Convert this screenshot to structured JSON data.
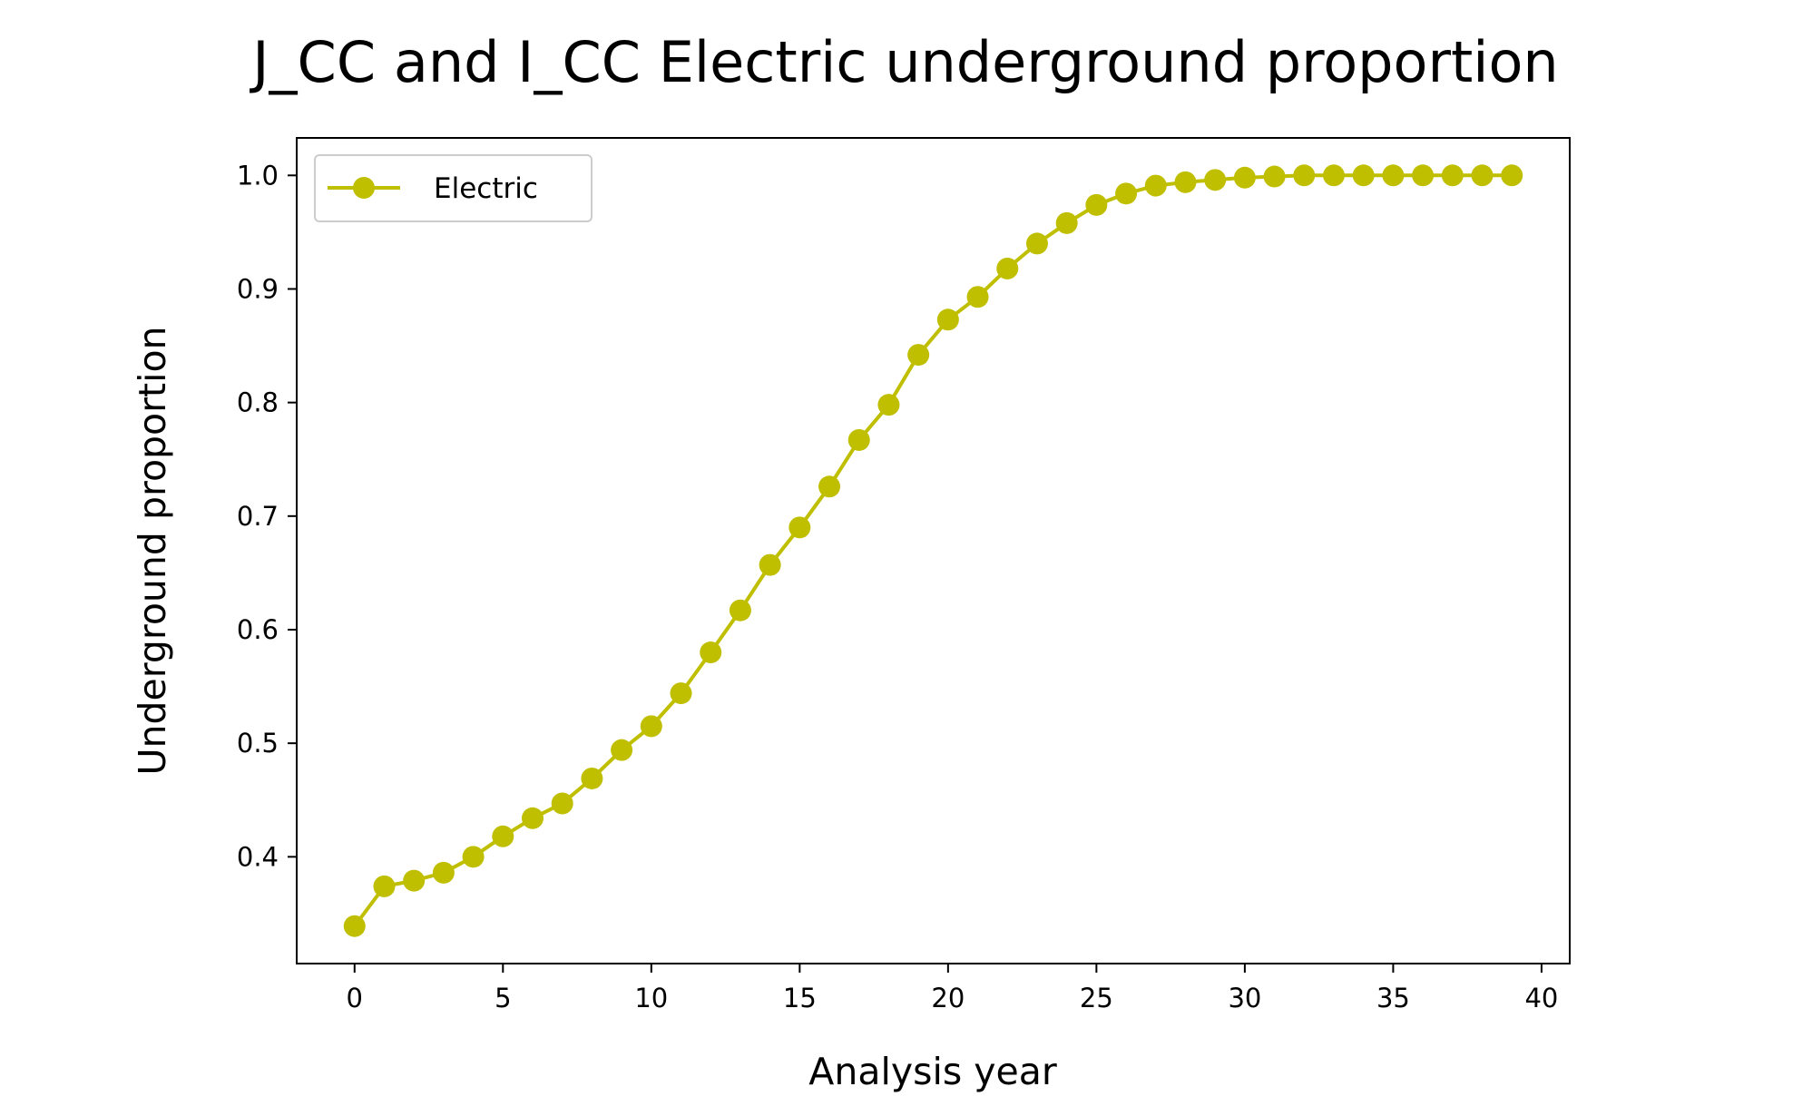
{
  "chart_data": {
    "type": "line",
    "title": "J_CC and I_CC Electric underground proportion",
    "xlabel": "Analysis year",
    "ylabel": "Underground proportion",
    "xlim": [
      -1.95,
      40.95
    ],
    "ylim": [
      0.306,
      1.033
    ],
    "xticks": [
      0,
      5,
      10,
      15,
      20,
      25,
      30,
      35,
      40
    ],
    "xtick_labels": [
      "0",
      "5",
      "10",
      "15",
      "20",
      "25",
      "30",
      "35",
      "40"
    ],
    "yticks": [
      0.4,
      0.5,
      0.6,
      0.7,
      0.8,
      0.9,
      1.0
    ],
    "ytick_labels": [
      "0.4",
      "0.5",
      "0.6",
      "0.7",
      "0.8",
      "0.9",
      "1.0"
    ],
    "grid": false,
    "legend_position": "top-left",
    "series": [
      {
        "name": "Electric",
        "color": "#bfbf00",
        "marker": "circle",
        "x": [
          0,
          1,
          2,
          3,
          4,
          5,
          6,
          7,
          8,
          9,
          10,
          11,
          12,
          13,
          14,
          15,
          16,
          17,
          18,
          19,
          20,
          21,
          22,
          23,
          24,
          25,
          26,
          27,
          28,
          29,
          30,
          31,
          32,
          33,
          34,
          35,
          36,
          37,
          38,
          39
        ],
        "y": [
          0.339,
          0.374,
          0.379,
          0.386,
          0.4,
          0.418,
          0.434,
          0.447,
          0.469,
          0.494,
          0.515,
          0.544,
          0.58,
          0.617,
          0.657,
          0.69,
          0.726,
          0.767,
          0.798,
          0.842,
          0.873,
          0.893,
          0.918,
          0.94,
          0.958,
          0.974,
          0.984,
          0.991,
          0.994,
          0.996,
          0.998,
          0.999,
          1.0,
          1.0,
          1.0,
          1.0,
          1.0,
          1.0,
          1.0,
          1.0
        ]
      }
    ]
  }
}
